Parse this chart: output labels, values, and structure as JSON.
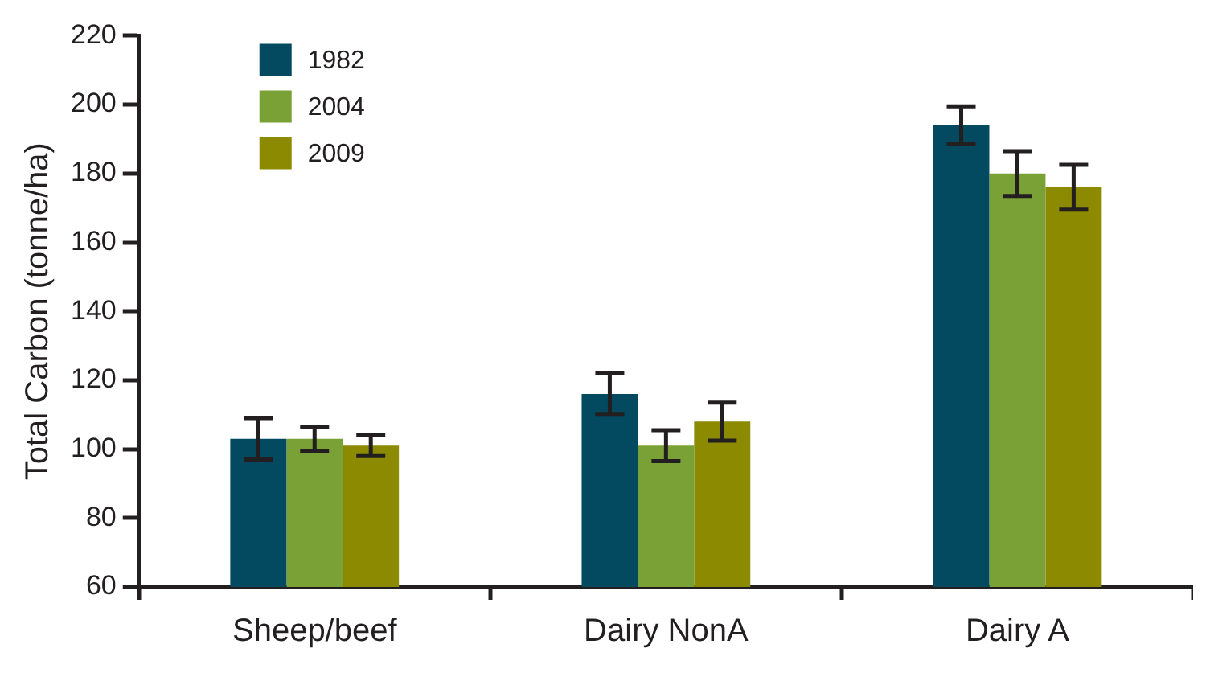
{
  "chart_data": {
    "type": "bar",
    "ylabel": "Total Carbon (tonne/ha)",
    "categories": [
      "Sheep/beef",
      "Dairy NonA",
      "Dairy A"
    ],
    "series": [
      {
        "name": "1982",
        "color": "#034a60",
        "values": [
          103,
          116,
          194
        ],
        "errors": [
          6,
          6,
          5.5
        ]
      },
      {
        "name": "2004",
        "color": "#7aa135",
        "values": [
          103,
          101,
          180
        ],
        "errors": [
          3.5,
          4.5,
          6.5
        ]
      },
      {
        "name": "2009",
        "color": "#8c8a00",
        "values": [
          101,
          108,
          176
        ],
        "errors": [
          3,
          5.5,
          6.5
        ]
      }
    ],
    "ylim": [
      60,
      220
    ],
    "yticks": [
      60,
      80,
      100,
      120,
      140,
      160,
      180,
      200,
      220
    ],
    "grid": false,
    "legend": "top left"
  }
}
